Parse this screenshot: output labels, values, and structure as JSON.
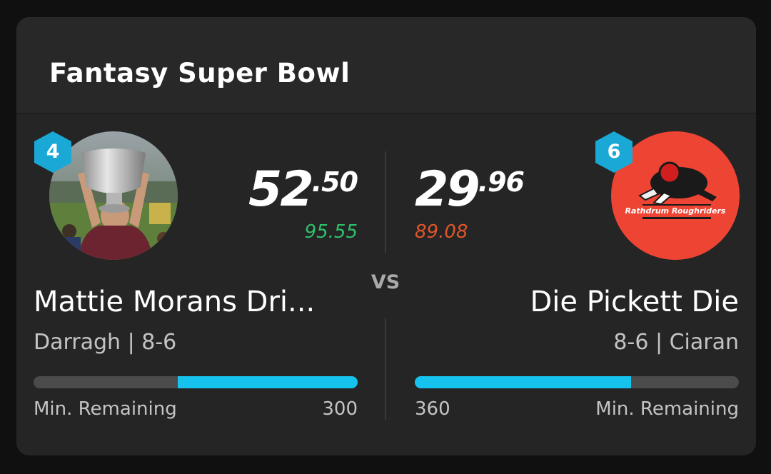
{
  "card": {
    "title": "Fantasy Super Bowl",
    "vs_label": "VS"
  },
  "colors": {
    "accent": "#16c3ee",
    "projected_up": "#2fbf6a",
    "projected_down": "#e0562a",
    "card_bg": "#252525",
    "right_avatar_bg": "#ee4433"
  },
  "home": {
    "seed": "4",
    "score_int": "52",
    "score_dec": ".50",
    "projected": "95.55",
    "team_name": "Mattie Morans Dri...",
    "owner_line": "Darragh | 8-6",
    "min_remaining_label": "Min. Remaining",
    "min_remaining_value": "300",
    "avatar_icon": "trophy-photo-avatar",
    "progress_fraction_remaining": 0.555
  },
  "away": {
    "seed": "6",
    "score_int": "29",
    "score_dec": ".96",
    "projected": "89.08",
    "team_name": "Die Pickett Die",
    "owner_line": "8-6 | Ciaran",
    "min_remaining_label": "Min. Remaining",
    "min_remaining_value": "360",
    "avatar_logo_text": "Rathdrum Roughriders",
    "avatar_icon": "rathdrum-roughriders-logo",
    "progress_fraction_remaining": 0.667
  }
}
